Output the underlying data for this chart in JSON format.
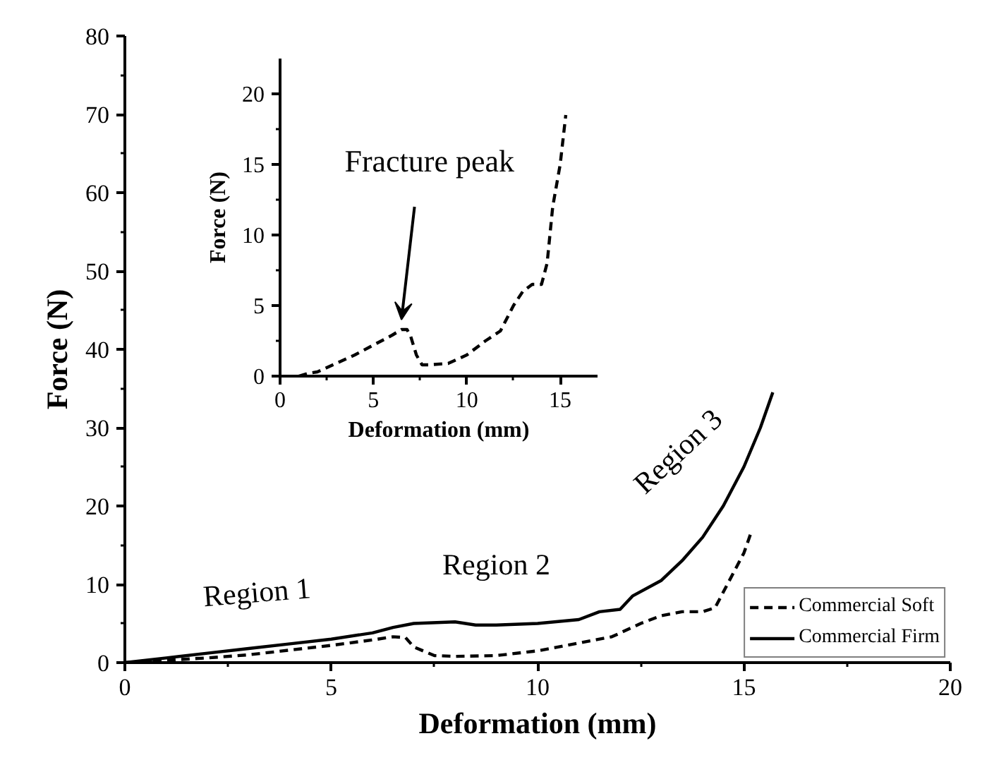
{
  "chart_data": [
    {
      "type": "line",
      "xlabel": "Deformation (mm)",
      "ylabel": "Force (N)",
      "xlim": [
        0,
        20
      ],
      "ylim": [
        0,
        80
      ],
      "xticks": [
        0,
        5,
        10,
        15,
        20
      ],
      "yticks": [
        0,
        10,
        20,
        30,
        40,
        50,
        60,
        70,
        80
      ],
      "legend": "bottom right",
      "series": [
        {
          "name": "Commercial Soft",
          "color": "#000000",
          "line_style": "dashed",
          "x": [
            0,
            1,
            2,
            3,
            4,
            5,
            6,
            6.5,
            6.8,
            7,
            7.5,
            8,
            9,
            10,
            11,
            11.8,
            12.5,
            13,
            13.5,
            14,
            14.3,
            14.6,
            15,
            15.2
          ],
          "values": [
            0,
            0.3,
            0.6,
            1,
            1.6,
            2.2,
            2.9,
            3.3,
            3.2,
            2,
            0.9,
            0.8,
            0.9,
            1.5,
            2.5,
            3.3,
            5,
            6,
            6.5,
            6.5,
            7,
            10,
            14,
            17
          ]
        },
        {
          "name": "Commercial Firm",
          "color": "#000000",
          "line_style": "solid",
          "x": [
            0,
            1,
            2,
            3,
            4,
            5,
            6,
            6.5,
            7,
            8,
            8.5,
            9,
            10,
            11,
            11.5,
            12,
            12.3,
            13,
            13.5,
            14,
            14.5,
            15,
            15.4,
            15.7
          ],
          "values": [
            0,
            0.6,
            1.2,
            1.8,
            2.4,
            3,
            3.8,
            4.5,
            5,
            5.2,
            4.8,
            4.8,
            5,
            5.5,
            6.5,
            6.8,
            8.5,
            10.5,
            13,
            16,
            20,
            25,
            30,
            34.5
          ]
        }
      ],
      "annotations": [
        "Region 1",
        "Region 2",
        "Region 3"
      ]
    },
    {
      "type": "line",
      "xlabel": "Deformation (mm)",
      "ylabel": "Force (N)",
      "xlim": [
        0,
        17
      ],
      "ylim": [
        0,
        22.5
      ],
      "xticks": [
        0,
        5,
        10,
        15
      ],
      "yticks": [
        0,
        5,
        10,
        15,
        20
      ],
      "series": [
        {
          "color": "#000000",
          "line_style": "dashed",
          "x": [
            1,
            1.5,
            2,
            2.5,
            3,
            4,
            5,
            6,
            6.5,
            6.8,
            7,
            7.3,
            7.6,
            8,
            9,
            10,
            11,
            11.8,
            12.5,
            13,
            13.5,
            14,
            14.3,
            14.6,
            15,
            15.3
          ],
          "values": [
            0,
            0.2,
            0.3,
            0.6,
            0.9,
            1.5,
            2.2,
            2.9,
            3.3,
            3.3,
            2.8,
            1.5,
            0.8,
            0.8,
            0.9,
            1.5,
            2.5,
            3.2,
            5,
            6,
            6.5,
            6.5,
            8,
            12,
            15,
            18.5
          ]
        }
      ],
      "annotations": [
        "Fracture peak"
      ]
    }
  ]
}
